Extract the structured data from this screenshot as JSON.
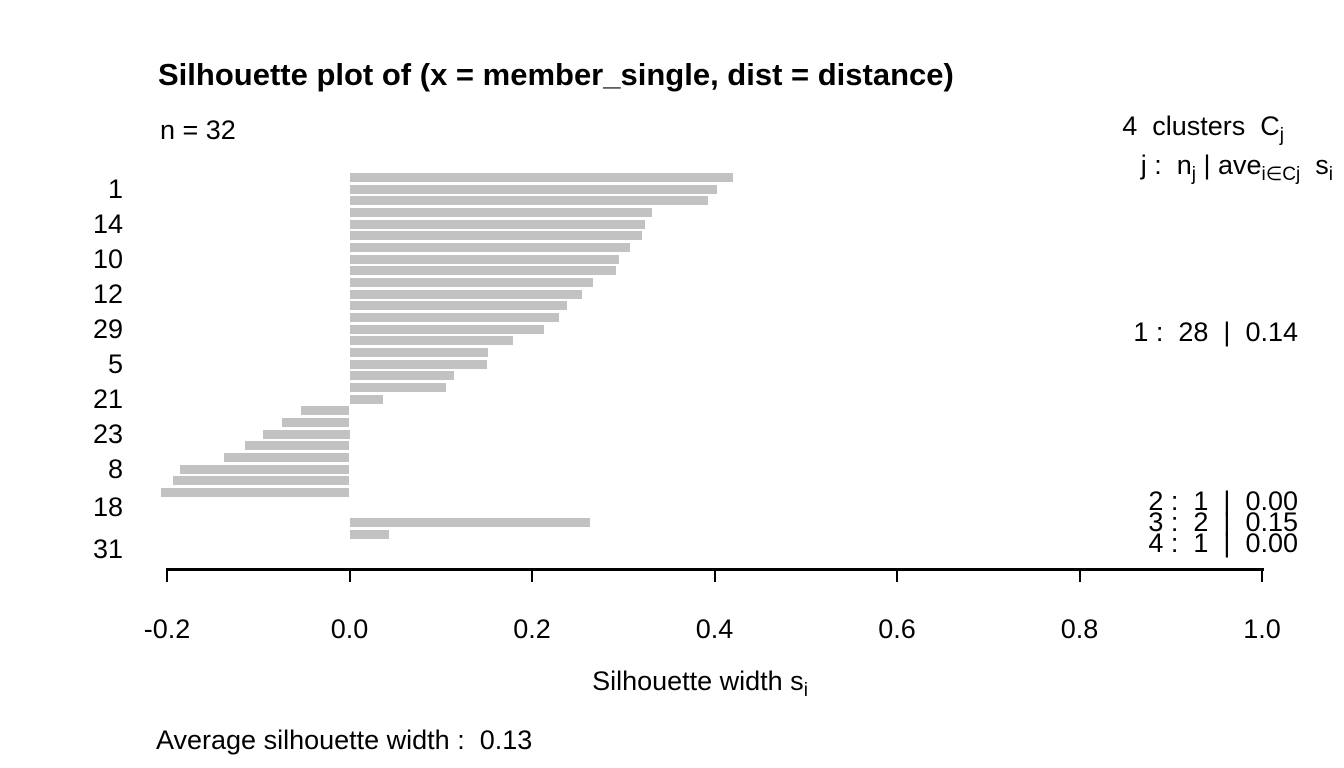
{
  "header": {
    "title": "Silhouette plot of (x = member_single, dist = distance)",
    "n_label": "n = 32"
  },
  "legend": {
    "clusters_text": "4  clusters  C",
    "clusters_sub": "j",
    "format_p1": "j :  n",
    "format_s1": "j",
    "format_p2": " | ave",
    "format_s2": "i∈Cj",
    "format_p3": "  s",
    "format_s3": "i"
  },
  "cluster_stats": [
    {
      "text": "1 :  28  |  0.14"
    },
    {
      "text": "2 :  1  |  0.00"
    },
    {
      "text": "3 :  2  |  0.15"
    },
    {
      "text": "4 :  1  |  0.00"
    }
  ],
  "axis": {
    "xlabel_text": "Silhouette width s",
    "xlabel_sub": "i",
    "tick_labels": [
      "-0.2",
      "0.0",
      "0.2",
      "0.4",
      "0.6",
      "0.8",
      "1.0"
    ]
  },
  "footer": {
    "average_text": "Average silhouette width :  0.13"
  },
  "chart_data": {
    "type": "bar",
    "orientation": "horizontal",
    "title": "Silhouette plot of (x = member_single, dist = distance)",
    "n": 32,
    "xlabel": "Silhouette width s_i",
    "xlim": [
      -0.2,
      1.0
    ],
    "x_ticks": [
      -0.2,
      0,
      0.2,
      0.4,
      0.6,
      0.8,
      1.0
    ],
    "grid": false,
    "bar_color": "#c2c2c2",
    "average_silhouette_width": 0.13,
    "clusters": [
      {
        "j": 1,
        "n_j": 28,
        "ave": 0.14,
        "values": [
          0.42,
          0.403,
          0.393,
          0.332,
          0.324,
          0.321,
          0.307,
          0.295,
          0.292,
          0.267,
          0.255,
          0.238,
          0.23,
          0.213,
          0.179,
          0.152,
          0.151,
          0.114,
          0.106,
          0.037,
          -0.053,
          -0.074,
          -0.095,
          -0.114,
          -0.137,
          -0.186,
          -0.193,
          -0.207
        ]
      },
      {
        "j": 2,
        "n_j": 1,
        "ave": 0.0,
        "values": [
          0.0
        ]
      },
      {
        "j": 3,
        "n_j": 2,
        "ave": 0.15,
        "values": [
          0.264,
          0.043
        ]
      },
      {
        "j": 4,
        "n_j": 1,
        "ave": 0.0,
        "values": [
          0.0
        ]
      }
    ],
    "row_labels": [
      {
        "row": 2,
        "label": "1"
      },
      {
        "row": 5,
        "label": "14"
      },
      {
        "row": 8,
        "label": "10"
      },
      {
        "row": 11,
        "label": "12"
      },
      {
        "row": 14,
        "label": "29"
      },
      {
        "row": 17,
        "label": "5"
      },
      {
        "row": 20,
        "label": "21"
      },
      {
        "row": 23,
        "label": "23"
      },
      {
        "row": 26,
        "label": "8"
      },
      {
        "row": 29,
        "label": "18"
      },
      {
        "row": 32,
        "label": "31"
      }
    ]
  }
}
